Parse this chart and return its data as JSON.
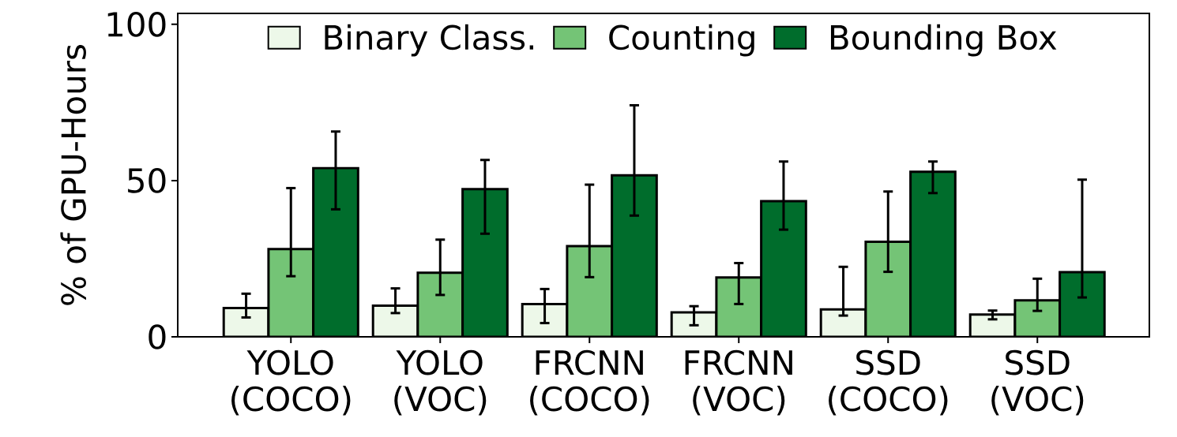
{
  "chart_data": {
    "type": "bar",
    "ylabel": "% of GPU-Hours",
    "categories": [
      "YOLO (COCO)",
      "YOLO (VOC)",
      "FRCNN (COCO)",
      "FRCNN (VOC)",
      "SSD (COCO)",
      "SSD (VOC)"
    ],
    "series": [
      {
        "name": "Binary Class.",
        "color": "#edf8e9",
        "values": [
          9.2,
          10.0,
          10.5,
          7.8,
          8.8,
          7.1
        ],
        "errors": [
          [
            6.2,
            13.8
          ],
          [
            7.6,
            15.5
          ],
          [
            4.4,
            15.3
          ],
          [
            3.7,
            9.8
          ],
          [
            6.8,
            22.4
          ],
          [
            5.6,
            8.4
          ]
        ]
      },
      {
        "name": "Counting",
        "color": "#74c476",
        "values": [
          28.1,
          20.5,
          29.0,
          19.0,
          30.4,
          11.7
        ],
        "errors": [
          [
            19.4,
            47.6
          ],
          [
            13.4,
            31.1
          ],
          [
            19.1,
            48.7
          ],
          [
            10.5,
            23.6
          ],
          [
            20.8,
            46.5
          ],
          [
            8.3,
            18.6
          ]
        ]
      },
      {
        "name": "Bounding Box",
        "color": "#006d2c",
        "values": [
          54.0,
          47.3,
          51.7,
          43.4,
          52.8,
          20.7
        ],
        "errors": [
          [
            40.8,
            65.7
          ],
          [
            33.0,
            56.6
          ],
          [
            38.8,
            74.1
          ],
          [
            34.3,
            56.1
          ],
          [
            46.0,
            56.1
          ],
          [
            12.6,
            50.3
          ]
        ]
      }
    ],
    "ylim": [
      0,
      103.5
    ],
    "yticks": [
      0,
      50,
      100
    ],
    "grid": false,
    "legend": "top"
  }
}
